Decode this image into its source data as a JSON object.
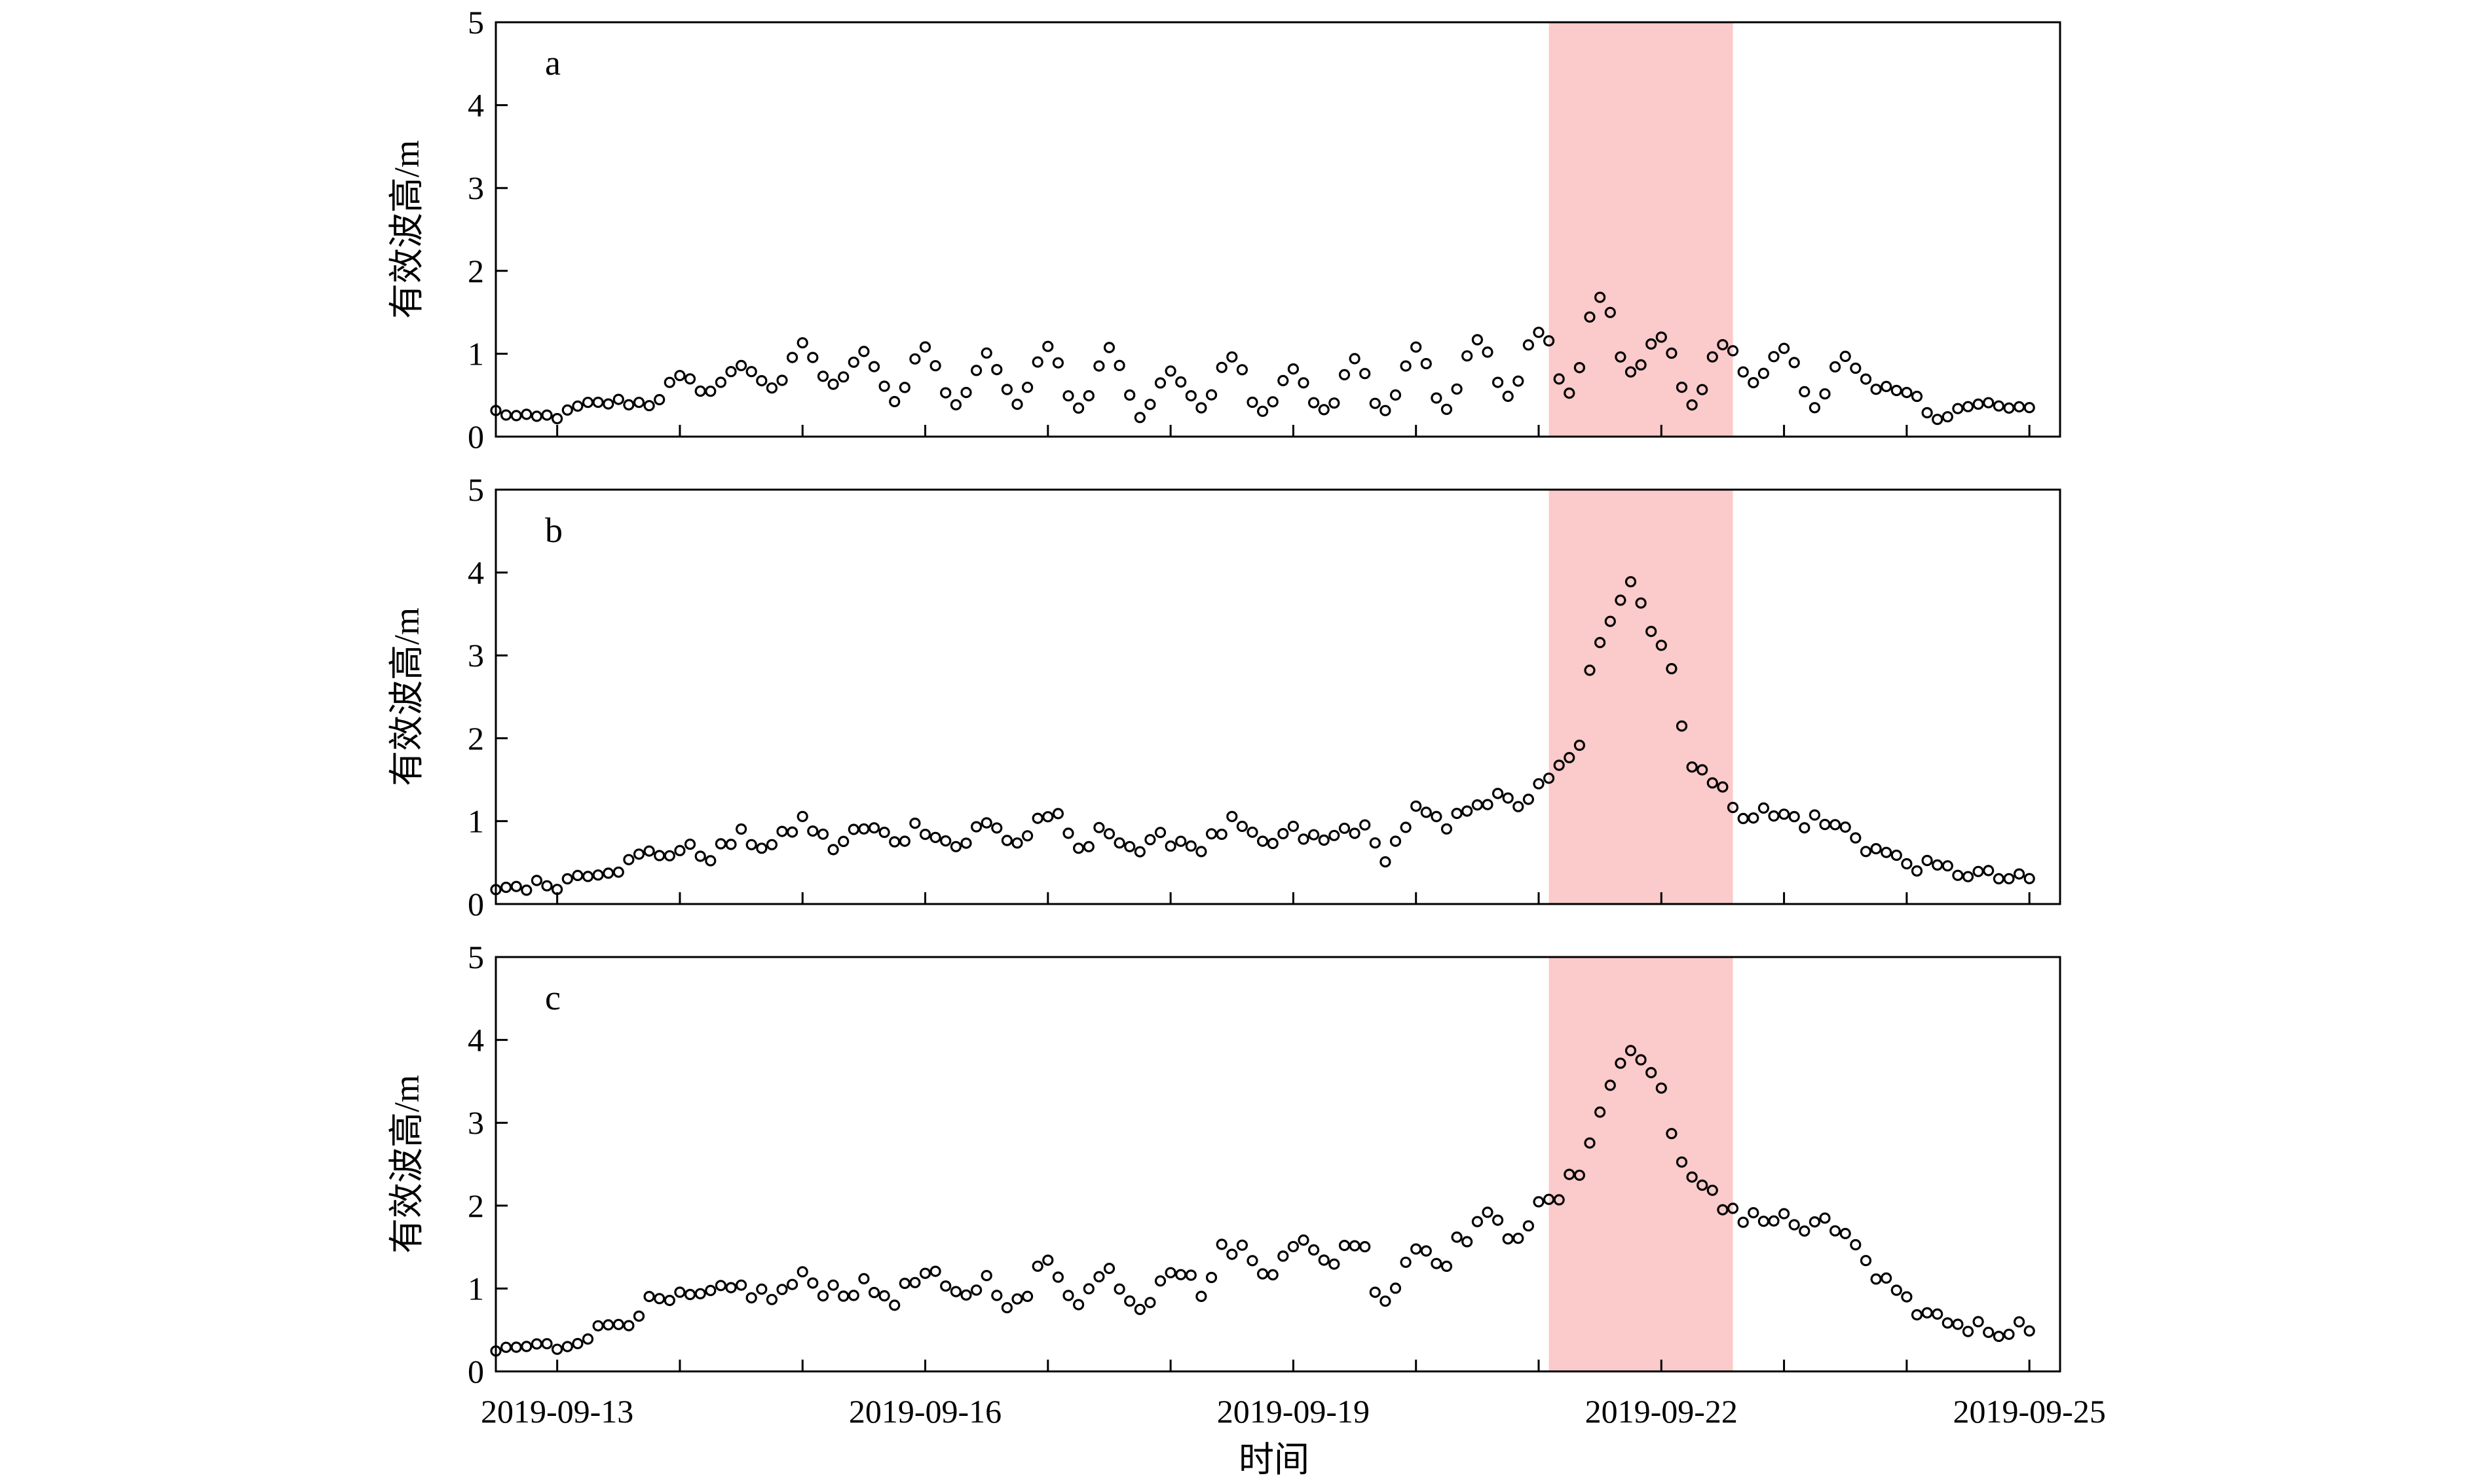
{
  "chart_data": {
    "type": "scatter",
    "xlabel": "时间",
    "x_tick_labels": [
      "2019-09-13",
      "2019-09-16",
      "2019-09-19",
      "2019-09-22",
      "2019-09-25"
    ],
    "x_range": [
      "2019-09-12 12:00",
      "2019-09-25 06:00"
    ],
    "highlight": {
      "from": "2019-09-21 02:00",
      "to": "2019-09-22 14:00",
      "color": "#fbcaca"
    },
    "marker": "hollow-circle",
    "panels": [
      {
        "label": "a",
        "ylabel": "有效波高/m",
        "ylim": [
          0,
          5
        ],
        "y_ticks": [
          "0",
          "1",
          "2",
          "3",
          "4",
          "5"
        ],
        "points": [
          [
            "2019-09-12 12:00",
            0.3
          ],
          [
            "2019-09-12 18:00",
            0.22
          ],
          [
            "2019-09-13 00:00",
            0.25
          ],
          [
            "2019-09-13 06:00",
            0.38
          ],
          [
            "2019-09-13 12:00",
            0.42
          ],
          [
            "2019-09-13 18:00",
            0.4
          ],
          [
            "2019-09-14 00:00",
            0.7
          ],
          [
            "2019-09-14 06:00",
            0.55
          ],
          [
            "2019-09-14 12:00",
            0.88
          ],
          [
            "2019-09-14 18:00",
            0.55
          ],
          [
            "2019-09-15 00:00",
            1.1
          ],
          [
            "2019-09-15 06:00",
            0.65
          ],
          [
            "2019-09-15 12:00",
            0.98
          ],
          [
            "2019-09-15 18:00",
            0.45
          ],
          [
            "2019-09-16 00:00",
            1.05
          ],
          [
            "2019-09-16 06:00",
            0.35
          ],
          [
            "2019-09-16 12:00",
            1.0
          ],
          [
            "2019-09-16 18:00",
            0.4
          ],
          [
            "2019-09-17 00:00",
            1.1
          ],
          [
            "2019-09-17 06:00",
            0.3
          ],
          [
            "2019-09-17 12:00",
            1.1
          ],
          [
            "2019-09-17 18:00",
            0.28
          ],
          [
            "2019-09-18 00:00",
            0.8
          ],
          [
            "2019-09-18 06:00",
            0.35
          ],
          [
            "2019-09-18 12:00",
            0.95
          ],
          [
            "2019-09-18 18:00",
            0.3
          ],
          [
            "2019-09-19 00:00",
            0.8
          ],
          [
            "2019-09-19 06:00",
            0.28
          ],
          [
            "2019-09-19 12:00",
            0.9
          ],
          [
            "2019-09-19 18:00",
            0.3
          ],
          [
            "2019-09-20 00:00",
            1.05
          ],
          [
            "2019-09-20 06:00",
            0.3
          ],
          [
            "2019-09-20 12:00",
            1.2
          ],
          [
            "2019-09-20 18:00",
            0.45
          ],
          [
            "2019-09-21 00:00",
            1.3
          ],
          [
            "2019-09-21 06:00",
            0.55
          ],
          [
            "2019-09-21 12:00",
            1.7
          ],
          [
            "2019-09-21 18:00",
            0.75
          ],
          [
            "2019-09-22 00:00",
            1.25
          ],
          [
            "2019-09-22 06:00",
            0.35
          ],
          [
            "2019-09-22 12:00",
            1.1
          ],
          [
            "2019-09-22 18:00",
            0.7
          ],
          [
            "2019-09-23 00:00",
            1.05
          ],
          [
            "2019-09-23 06:00",
            0.35
          ],
          [
            "2019-09-23 12:00",
            0.95
          ],
          [
            "2019-09-23 18:00",
            0.6
          ],
          [
            "2019-09-24 00:00",
            0.55
          ],
          [
            "2019-09-24 06:00",
            0.22
          ],
          [
            "2019-09-24 12:00",
            0.4
          ],
          [
            "2019-09-24 18:00",
            0.35
          ],
          [
            "2019-09-25 00:00",
            0.32
          ]
        ]
      },
      {
        "label": "b",
        "ylabel": "有效波高/m",
        "ylim": [
          0,
          5
        ],
        "y_ticks": [
          "0",
          "1",
          "2",
          "3",
          "4",
          "5"
        ],
        "points": [
          [
            "2019-09-12 12:00",
            0.2
          ],
          [
            "2019-09-12 18:00",
            0.22
          ],
          [
            "2019-09-13 00:00",
            0.25
          ],
          [
            "2019-09-13 06:00",
            0.4
          ],
          [
            "2019-09-13 12:00",
            0.45
          ],
          [
            "2019-09-13 18:00",
            0.6
          ],
          [
            "2019-09-14 00:00",
            0.65
          ],
          [
            "2019-09-14 06:00",
            0.6
          ],
          [
            "2019-09-14 12:00",
            0.8
          ],
          [
            "2019-09-14 18:00",
            0.7
          ],
          [
            "2019-09-15 00:00",
            1.0
          ],
          [
            "2019-09-15 06:00",
            0.7
          ],
          [
            "2019-09-15 12:00",
            0.9
          ],
          [
            "2019-09-15 18:00",
            0.8
          ],
          [
            "2019-09-16 00:00",
            0.95
          ],
          [
            "2019-09-16 06:00",
            0.7
          ],
          [
            "2019-09-16 12:00",
            0.95
          ],
          [
            "2019-09-16 18:00",
            0.75
          ],
          [
            "2019-09-17 00:00",
            1.1
          ],
          [
            "2019-09-17 06:00",
            0.65
          ],
          [
            "2019-09-17 12:00",
            0.9
          ],
          [
            "2019-09-17 18:00",
            0.65
          ],
          [
            "2019-09-18 00:00",
            0.8
          ],
          [
            "2019-09-18 06:00",
            0.7
          ],
          [
            "2019-09-18 12:00",
            0.95
          ],
          [
            "2019-09-18 18:00",
            0.7
          ],
          [
            "2019-09-19 00:00",
            0.85
          ],
          [
            "2019-09-19 06:00",
            0.75
          ],
          [
            "2019-09-19 12:00",
            0.95
          ],
          [
            "2019-09-19 18:00",
            0.6
          ],
          [
            "2019-09-20 00:00",
            1.1
          ],
          [
            "2019-09-20 06:00",
            0.9
          ],
          [
            "2019-09-20 12:00",
            1.3
          ],
          [
            "2019-09-20 18:00",
            1.2
          ],
          [
            "2019-09-21 00:00",
            1.35
          ],
          [
            "2019-09-21 06:00",
            1.7
          ],
          [
            "2019-09-21 12:00",
            3.0
          ],
          [
            "2019-09-21 18:00",
            4.1
          ],
          [
            "2019-09-22 00:00",
            3.2
          ],
          [
            "2019-09-22 06:00",
            1.8
          ],
          [
            "2019-09-22 12:00",
            1.3
          ],
          [
            "2019-09-22 18:00",
            1.1
          ],
          [
            "2019-09-23 00:00",
            1.05
          ],
          [
            "2019-09-23 06:00",
            1.0
          ],
          [
            "2019-09-23 12:00",
            0.9
          ],
          [
            "2019-09-23 18:00",
            0.65
          ],
          [
            "2019-09-24 00:00",
            0.5
          ],
          [
            "2019-09-24 06:00",
            0.42
          ],
          [
            "2019-09-24 12:00",
            0.38
          ],
          [
            "2019-09-24 18:00",
            0.32
          ],
          [
            "2019-09-25 00:00",
            0.28
          ]
        ]
      },
      {
        "label": "c",
        "ylabel": "有效波高/m",
        "ylim": [
          0,
          5
        ],
        "y_ticks": [
          "0",
          "1",
          "2",
          "3",
          "4",
          "5"
        ],
        "points": [
          [
            "2019-09-12 12:00",
            0.25
          ],
          [
            "2019-09-12 18:00",
            0.3
          ],
          [
            "2019-09-13 00:00",
            0.3
          ],
          [
            "2019-09-13 06:00",
            0.45
          ],
          [
            "2019-09-13 12:00",
            0.6
          ],
          [
            "2019-09-13 18:00",
            0.8
          ],
          [
            "2019-09-14 00:00",
            0.85
          ],
          [
            "2019-09-14 06:00",
            0.9
          ],
          [
            "2019-09-14 12:00",
            1.0
          ],
          [
            "2019-09-14 18:00",
            0.9
          ],
          [
            "2019-09-15 00:00",
            1.1
          ],
          [
            "2019-09-15 06:00",
            1.0
          ],
          [
            "2019-09-15 12:00",
            1.0
          ],
          [
            "2019-09-15 18:00",
            0.9
          ],
          [
            "2019-09-16 00:00",
            1.15
          ],
          [
            "2019-09-16 06:00",
            0.9
          ],
          [
            "2019-09-16 12:00",
            1.1
          ],
          [
            "2019-09-16 18:00",
            0.8
          ],
          [
            "2019-09-17 00:00",
            1.3
          ],
          [
            "2019-09-17 06:00",
            0.9
          ],
          [
            "2019-09-17 12:00",
            1.2
          ],
          [
            "2019-09-17 18:00",
            0.8
          ],
          [
            "2019-09-18 00:00",
            1.3
          ],
          [
            "2019-09-18 06:00",
            1.0
          ],
          [
            "2019-09-18 12:00",
            1.55
          ],
          [
            "2019-09-18 18:00",
            1.2
          ],
          [
            "2019-09-19 00:00",
            1.6
          ],
          [
            "2019-09-19 06:00",
            1.3
          ],
          [
            "2019-09-19 12:00",
            1.6
          ],
          [
            "2019-09-19 18:00",
            0.9
          ],
          [
            "2019-09-20 00:00",
            1.5
          ],
          [
            "2019-09-20 06:00",
            1.4
          ],
          [
            "2019-09-20 12:00",
            1.8
          ],
          [
            "2019-09-20 18:00",
            1.7
          ],
          [
            "2019-09-21 00:00",
            1.9
          ],
          [
            "2019-09-21 06:00",
            2.2
          ],
          [
            "2019-09-21 12:00",
            3.2
          ],
          [
            "2019-09-21 18:00",
            3.9
          ],
          [
            "2019-09-22 00:00",
            3.4
          ],
          [
            "2019-09-22 06:00",
            2.2
          ],
          [
            "2019-09-22 12:00",
            2.0
          ],
          [
            "2019-09-22 18:00",
            1.9
          ],
          [
            "2019-09-23 00:00",
            1.8
          ],
          [
            "2019-09-23 06:00",
            1.7
          ],
          [
            "2019-09-23 12:00",
            1.7
          ],
          [
            "2019-09-23 18:00",
            1.1
          ],
          [
            "2019-09-24 00:00",
            0.8
          ],
          [
            "2019-09-24 06:00",
            0.65
          ],
          [
            "2019-09-24 12:00",
            0.55
          ],
          [
            "2019-09-24 18:00",
            0.5
          ],
          [
            "2019-09-25 00:00",
            0.55
          ]
        ]
      }
    ]
  }
}
